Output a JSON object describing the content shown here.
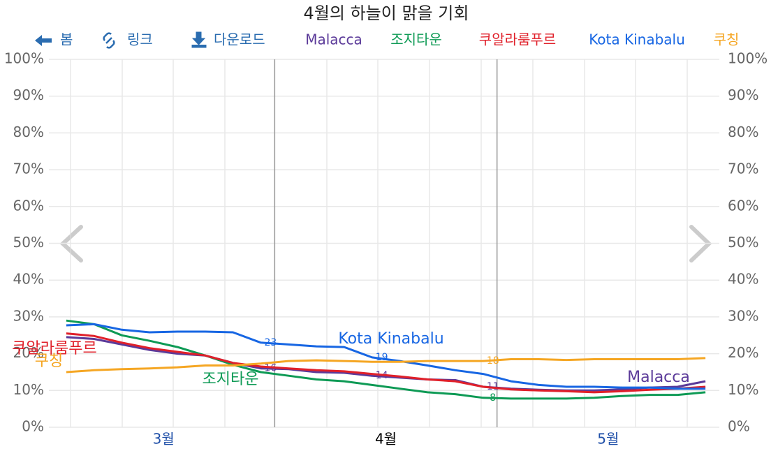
{
  "chart_data": {
    "type": "line",
    "title": "4월의 하늘이 맑을 기회",
    "buttons": [
      "봄",
      "링크",
      "다운로드"
    ],
    "categories": [
      null,
      null,
      null,
      null,
      "3월",
      null,
      null,
      null,
      null,
      null,
      null,
      null,
      "4월",
      null,
      null,
      null,
      null,
      null,
      null,
      null,
      "5월",
      null,
      null,
      null
    ],
    "ylim": [
      0,
      100
    ],
    "yticks": [
      {
        "value": 0,
        "label": "0%"
      },
      {
        "value": 10,
        "label": "10%"
      },
      {
        "value": 20,
        "label": "20%"
      },
      {
        "value": 30,
        "label": "30%"
      },
      {
        "value": 40,
        "label": "40%"
      },
      {
        "value": 50,
        "label": "50%"
      },
      {
        "value": 60,
        "label": "60%"
      },
      {
        "value": 70,
        "label": "70%"
      },
      {
        "value": 80,
        "label": "80%"
      },
      {
        "value": 90,
        "label": "90%"
      },
      {
        "value": 100,
        "label": "100%"
      }
    ],
    "grid": true,
    "series": [
      {
        "name": "Malacca",
        "color": "#5b3a99",
        "values": [
          24.5,
          24,
          22.5,
          21,
          20,
          19.5,
          17.5,
          16,
          15.8,
          15,
          14.8,
          14,
          13.5,
          13,
          12.8,
          11,
          10.5,
          10.2,
          10,
          10,
          10.3,
          10.8,
          11,
          12.5
        ],
        "value_labels": [
          null,
          null,
          null,
          null,
          null,
          null,
          null,
          "16",
          null,
          null,
          null,
          "14",
          null,
          null,
          null,
          "11",
          null,
          null,
          null,
          null,
          null,
          null,
          null,
          null
        ]
      },
      {
        "name": "조지타운",
        "color": "#0e9a55",
        "values": [
          29,
          28,
          25,
          23.5,
          21.8,
          19.5,
          17,
          15,
          14,
          13,
          12.5,
          11.5,
          10.5,
          9.5,
          9,
          8,
          7.8,
          7.8,
          7.8,
          8,
          8.5,
          8.8,
          8.8,
          9.5
        ],
        "value_labels": [
          null,
          null,
          null,
          null,
          null,
          null,
          null,
          null,
          null,
          null,
          null,
          null,
          null,
          null,
          null,
          "8",
          null,
          null,
          null,
          null,
          null,
          null,
          null,
          null
        ]
      },
      {
        "name": "쿠알라룸푸르",
        "color": "#e0202a",
        "values": [
          25.5,
          24.8,
          23,
          21.5,
          20.5,
          19.5,
          17.5,
          16.5,
          16,
          15.5,
          15.2,
          14.5,
          13.8,
          13,
          12.5,
          11,
          10.3,
          10,
          9.8,
          9.5,
          9.8,
          10.2,
          10.5,
          11
        ]
      },
      {
        "name": "Kota Kinabalu",
        "color": "#1766e3",
        "values": [
          27.7,
          28,
          26.5,
          25.8,
          26,
          26,
          25.8,
          23,
          22.5,
          22,
          21.8,
          19,
          18,
          16.8,
          15.5,
          14.5,
          12.5,
          11.5,
          11,
          11,
          10.8,
          10.8,
          10.5,
          10.5
        ],
        "value_labels": [
          null,
          null,
          null,
          null,
          null,
          null,
          null,
          "23",
          null,
          null,
          null,
          "19",
          null,
          null,
          null,
          null,
          null,
          null,
          null,
          null,
          null,
          null,
          null,
          null
        ]
      },
      {
        "name": "쿠칭",
        "color": "#f5a623",
        "values": [
          15,
          15.5,
          15.8,
          16,
          16.3,
          16.8,
          16.8,
          17.3,
          18,
          18.2,
          18,
          17.8,
          17.8,
          18,
          18,
          18,
          18.5,
          18.5,
          18.3,
          18.5,
          18.5,
          18.5,
          18.5,
          18.8
        ],
        "value_labels": [
          null,
          null,
          null,
          null,
          null,
          null,
          null,
          null,
          null,
          null,
          null,
          null,
          null,
          null,
          null,
          "18",
          null,
          null,
          null,
          null,
          null,
          null,
          null,
          null
        ]
      }
    ]
  }
}
